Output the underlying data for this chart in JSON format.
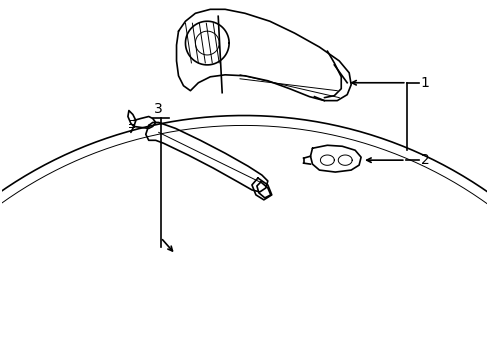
{
  "bg_color": "#ffffff",
  "line_color": "#000000",
  "line_width": 1.2,
  "thin_line": 0.7,
  "label_1": "1",
  "label_2": "2",
  "label_3": "3",
  "figsize": [
    4.89,
    3.6
  ],
  "dpi": 100
}
